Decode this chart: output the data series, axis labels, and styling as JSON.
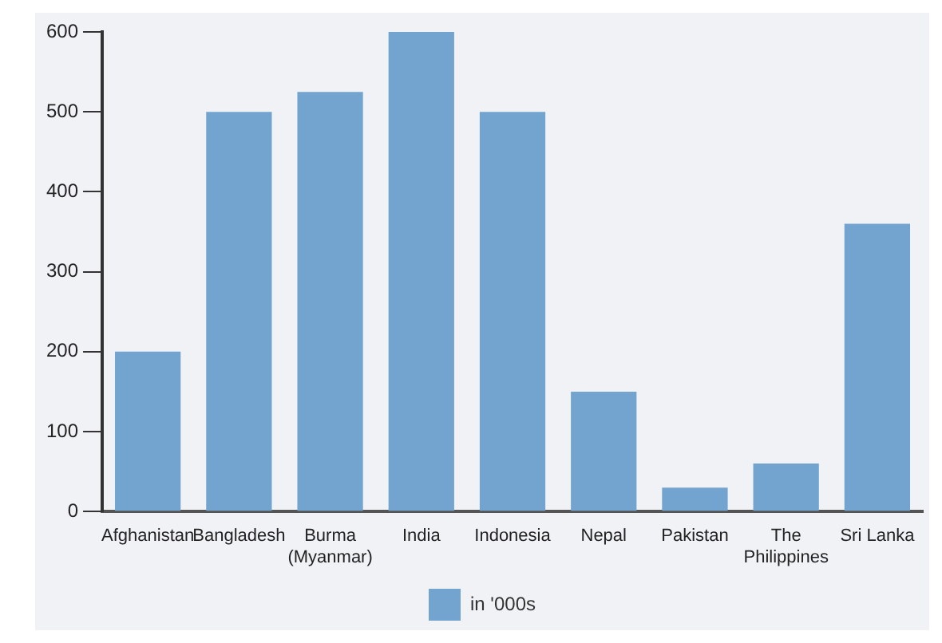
{
  "chart_data": {
    "type": "bar",
    "categories": [
      "Afghanistan",
      "Bangladesh",
      "Burma\n(Myanmar)",
      "India",
      "Indonesia",
      "Nepal",
      "Pakistan",
      "The\nPhilippines",
      "Sri Lanka"
    ],
    "series": [
      {
        "name": "in '000s",
        "color": "#72a4cf",
        "values": [
          200,
          500,
          525,
          600,
          500,
          150,
          30,
          60,
          360
        ]
      }
    ],
    "ylim": [
      0,
      600
    ],
    "yticks": [
      0,
      100,
      200,
      300,
      400,
      500,
      600
    ],
    "grid": false,
    "legend": "bottom"
  }
}
